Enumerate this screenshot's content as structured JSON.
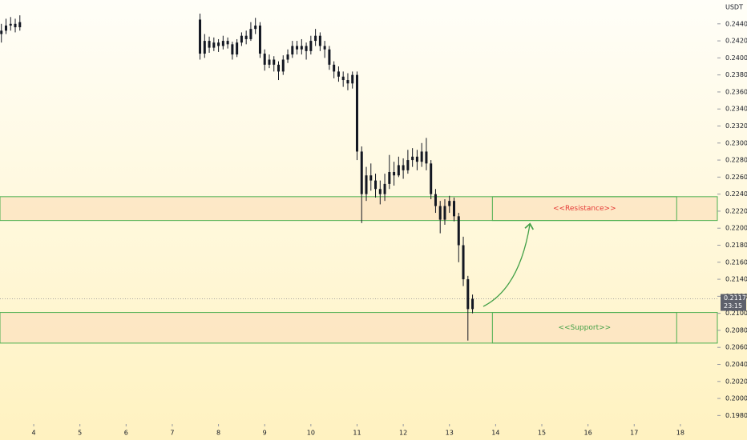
{
  "chart_data": {
    "type": "candlestick",
    "currency": "USDT",
    "color": "#131722",
    "x": [
      3.3,
      3.4,
      3.5,
      3.6,
      3.7,
      7.6,
      7.7,
      7.8,
      7.9,
      8.0,
      8.1,
      8.2,
      8.3,
      8.4,
      8.5,
      8.6,
      8.7,
      8.8,
      8.9,
      9.0,
      9.1,
      9.2,
      9.3,
      9.4,
      9.5,
      9.6,
      9.7,
      9.8,
      9.9,
      10.0,
      10.1,
      10.2,
      10.3,
      10.4,
      10.5,
      10.6,
      10.7,
      10.8,
      10.9,
      11.0,
      11.1,
      11.2,
      11.3,
      11.4,
      11.5,
      11.6,
      11.7,
      11.8,
      11.9,
      12.0,
      12.1,
      12.2,
      12.3,
      12.4,
      12.5,
      12.6,
      12.7,
      12.8,
      12.9,
      13.0,
      13.1,
      13.2,
      13.3,
      13.4,
      13.5
    ],
    "open": [
      0.2428,
      0.2432,
      0.2438,
      0.244,
      0.2436,
      0.2445,
      0.2405,
      0.242,
      0.2412,
      0.2418,
      0.2414,
      0.242,
      0.2416,
      0.2404,
      0.2418,
      0.2426,
      0.2422,
      0.2434,
      0.2438,
      0.2405,
      0.2392,
      0.2398,
      0.2392,
      0.2384,
      0.2398,
      0.2404,
      0.2414,
      0.241,
      0.2414,
      0.2408,
      0.242,
      0.2426,
      0.2414,
      0.241,
      0.2392,
      0.2384,
      0.2378,
      0.2374,
      0.237,
      0.238,
      0.229,
      0.224,
      0.2262,
      0.2256,
      0.2246,
      0.224,
      0.2252,
      0.2266,
      0.2262,
      0.2274,
      0.2268,
      0.228,
      0.2284,
      0.2278,
      0.229,
      0.2276,
      0.224,
      0.2226,
      0.221,
      0.2226,
      0.2232,
      0.2214,
      0.218,
      0.214,
      0.2105
    ],
    "high": [
      0.244,
      0.2446,
      0.2448,
      0.2446,
      0.245,
      0.2452,
      0.2428,
      0.2425,
      0.2424,
      0.2422,
      0.2426,
      0.2424,
      0.2419,
      0.2422,
      0.243,
      0.2432,
      0.2442,
      0.2447,
      0.2442,
      0.241,
      0.2404,
      0.2402,
      0.2396,
      0.2403,
      0.241,
      0.242,
      0.242,
      0.2422,
      0.2418,
      0.2426,
      0.2434,
      0.243,
      0.242,
      0.2414,
      0.2396,
      0.239,
      0.2384,
      0.2382,
      0.2384,
      0.2384,
      0.2296,
      0.2272,
      0.2276,
      0.2264,
      0.2256,
      0.2264,
      0.2286,
      0.2278,
      0.2284,
      0.2282,
      0.2292,
      0.2294,
      0.2292,
      0.23,
      0.2306,
      0.228,
      0.2246,
      0.2232,
      0.2234,
      0.2238,
      0.2236,
      0.2218,
      0.219,
      0.2144,
      0.2122
    ],
    "low": [
      0.2418,
      0.2428,
      0.2432,
      0.243,
      0.2432,
      0.2398,
      0.24,
      0.2406,
      0.2408,
      0.2407,
      0.241,
      0.2411,
      0.2398,
      0.2401,
      0.2414,
      0.2416,
      0.242,
      0.2428,
      0.24,
      0.2385,
      0.2388,
      0.2384,
      0.2374,
      0.238,
      0.2394,
      0.24,
      0.2404,
      0.2404,
      0.2398,
      0.2404,
      0.2414,
      0.2408,
      0.24,
      0.2386,
      0.2376,
      0.2372,
      0.2366,
      0.2362,
      0.2364,
      0.228,
      0.2206,
      0.2232,
      0.2244,
      0.2236,
      0.2228,
      0.2232,
      0.2246,
      0.225,
      0.226,
      0.2258,
      0.2264,
      0.2272,
      0.2268,
      0.2272,
      0.2268,
      0.2234,
      0.2218,
      0.2194,
      0.2204,
      0.2218,
      0.2208,
      0.216,
      0.2132,
      0.2068,
      0.21
    ],
    "close": [
      0.2432,
      0.2438,
      0.244,
      0.2436,
      0.2442,
      0.2405,
      0.242,
      0.2412,
      0.2418,
      0.2414,
      0.242,
      0.2416,
      0.2404,
      0.2418,
      0.2426,
      0.2422,
      0.2434,
      0.2438,
      0.2405,
      0.2392,
      0.2398,
      0.2392,
      0.2384,
      0.2398,
      0.2404,
      0.2414,
      0.241,
      0.2414,
      0.2408,
      0.242,
      0.2426,
      0.2414,
      0.241,
      0.2392,
      0.2384,
      0.2378,
      0.2374,
      0.237,
      0.238,
      0.229,
      0.224,
      0.2262,
      0.2256,
      0.2246,
      0.224,
      0.2252,
      0.2266,
      0.2262,
      0.2274,
      0.2268,
      0.228,
      0.2284,
      0.2278,
      0.229,
      0.2276,
      0.224,
      0.2226,
      0.221,
      0.2226,
      0.2232,
      0.2214,
      0.218,
      0.214,
      0.2105,
      0.2117
    ],
    "xlim": [
      3.27,
      18.8
    ],
    "ylim": [
      0.197,
      0.2468
    ],
    "xticks": [
      4,
      5,
      6,
      7,
      8,
      9,
      10,
      11,
      12,
      13,
      14,
      15,
      16,
      17,
      18
    ],
    "yticks": [
      {
        "value": 0.244,
        "label": "0.2440"
      },
      {
        "value": 0.242,
        "label": "0.2420"
      },
      {
        "value": 0.24,
        "label": "0.2400"
      },
      {
        "value": 0.238,
        "label": "0.2380"
      },
      {
        "value": 0.236,
        "label": "0.2360"
      },
      {
        "value": 0.234,
        "label": "0.2340"
      },
      {
        "value": 0.232,
        "label": "0.2320"
      },
      {
        "value": 0.23,
        "label": "0.2300"
      },
      {
        "value": 0.228,
        "label": "0.2280"
      },
      {
        "value": 0.226,
        "label": "0.2260"
      },
      {
        "value": 0.224,
        "label": "0.2240"
      },
      {
        "value": 0.222,
        "label": "0.2220"
      },
      {
        "value": 0.22,
        "label": "0.2200"
      },
      {
        "value": 0.218,
        "label": "0.2180"
      },
      {
        "value": 0.216,
        "label": "0.2160"
      },
      {
        "value": 0.214,
        "label": "0.2140"
      },
      {
        "value": 0.212,
        "label": "0.2120"
      },
      {
        "value": 0.21,
        "label": "0.2100"
      },
      {
        "value": 0.208,
        "label": "0.2080"
      },
      {
        "value": 0.206,
        "label": "0.2060"
      },
      {
        "value": 0.204,
        "label": "0.2040"
      },
      {
        "value": 0.202,
        "label": "0.2020"
      },
      {
        "value": 0.2,
        "label": "0.2000"
      },
      {
        "value": 0.198,
        "label": "0.1980"
      }
    ],
    "zones": [
      {
        "label": "<<Resistance>>",
        "range": [
          0.2209,
          0.2237
        ],
        "label_x": [
          13.93,
          17.92
        ],
        "color": "#e53935"
      },
      {
        "label": "<<Support>>",
        "range": [
          0.2065,
          0.2101
        ],
        "label_x": [
          13.93,
          17.92
        ],
        "color": "#43a047"
      }
    ],
    "last_price": 0.2117,
    "countdown": "23:15"
  }
}
